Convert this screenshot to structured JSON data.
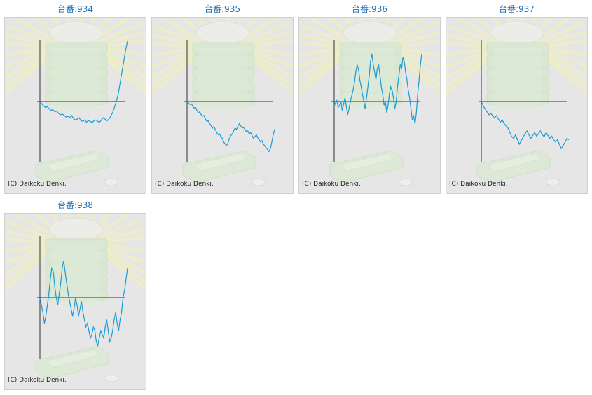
{
  "cards": [
    {
      "title": "台番:934",
      "copyright": "(C) Daikoku Denki.",
      "series": [
        0,
        -3,
        -6,
        -8,
        -7,
        -10,
        -12,
        -11,
        -14,
        -13,
        -16,
        -18,
        -17,
        -19,
        -21,
        -20,
        -22,
        -19,
        -23,
        -25,
        -24,
        -22,
        -26,
        -27,
        -25,
        -28,
        -26,
        -27,
        -29,
        -26,
        -25,
        -27,
        -28,
        -25,
        -22,
        -24,
        -26,
        -24,
        -20,
        -15,
        -8,
        0,
        10,
        25,
        40,
        55,
        70,
        82
      ]
    },
    {
      "title": "台番:935",
      "copyright": "(C) Daikoku Denki.",
      "series": [
        0,
        -2,
        -4,
        -3,
        -6,
        -9,
        -8,
        -12,
        -15,
        -14,
        -18,
        -20,
        -19,
        -24,
        -27,
        -26,
        -30,
        -33,
        -36,
        -34,
        -38,
        -42,
        -45,
        -44,
        -48,
        -50,
        -55,
        -58,
        -60,
        -56,
        -50,
        -46,
        -44,
        -40,
        -36,
        -38,
        -34,
        -30,
        -33,
        -36,
        -35,
        -38,
        -41,
        -40,
        -44,
        -42,
        -46,
        -50,
        -48,
        -45,
        -49,
        -52,
        -55,
        -53,
        -58,
        -60,
        -63,
        -65,
        -68,
        -64,
        -55,
        -45,
        -38
      ]
    },
    {
      "title": "台番:936",
      "copyright": "(C) Daikoku Denki.",
      "series": [
        0,
        -4,
        2,
        -8,
        -5,
        0,
        -12,
        -3,
        5,
        -6,
        -18,
        -10,
        0,
        8,
        15,
        25,
        40,
        50,
        45,
        30,
        20,
        10,
        0,
        -10,
        5,
        20,
        35,
        55,
        65,
        50,
        40,
        30,
        45,
        50,
        35,
        20,
        10,
        -5,
        0,
        -15,
        -5,
        10,
        20,
        15,
        5,
        -10,
        0,
        20,
        35,
        50,
        45,
        60,
        55,
        40,
        30,
        15,
        5,
        -10,
        -25,
        -20,
        -30,
        -15,
        10,
        30,
        50,
        65
      ]
    },
    {
      "title": "台番:937",
      "copyright": "(C) Daikoku Denki.",
      "series": [
        0,
        -6,
        -10,
        -14,
        -18,
        -16,
        -20,
        -22,
        -19,
        -24,
        -28,
        -25,
        -30,
        -33,
        -36,
        -42,
        -48,
        -50,
        -45,
        -52,
        -58,
        -53,
        -48,
        -44,
        -40,
        -45,
        -50,
        -46,
        -42,
        -47,
        -44,
        -40,
        -45,
        -48,
        -42,
        -46,
        -50,
        -47,
        -52,
        -55,
        -52,
        -58,
        -64,
        -60,
        -55,
        -50,
        -52
      ]
    },
    {
      "title": "台番:938",
      "copyright": "(C) Daikoku Denki.",
      "series": [
        0,
        -10,
        -20,
        -35,
        -25,
        -10,
        5,
        25,
        40,
        35,
        15,
        0,
        -10,
        5,
        20,
        40,
        50,
        35,
        20,
        5,
        -5,
        -15,
        -25,
        -15,
        0,
        -10,
        -25,
        -15,
        -5,
        -20,
        -30,
        -40,
        -35,
        -45,
        -55,
        -50,
        -40,
        -45,
        -60,
        -65,
        -55,
        -45,
        -50,
        -55,
        -40,
        -30,
        -45,
        -60,
        -55,
        -45,
        -30,
        -20,
        -35,
        -45,
        -30,
        -20,
        0,
        10,
        25,
        40
      ]
    }
  ],
  "colors": {
    "line": "#1a9ad6",
    "axis": "#333333",
    "panel_bg": "#e6e6e6",
    "title": "#1f6fb5"
  }
}
